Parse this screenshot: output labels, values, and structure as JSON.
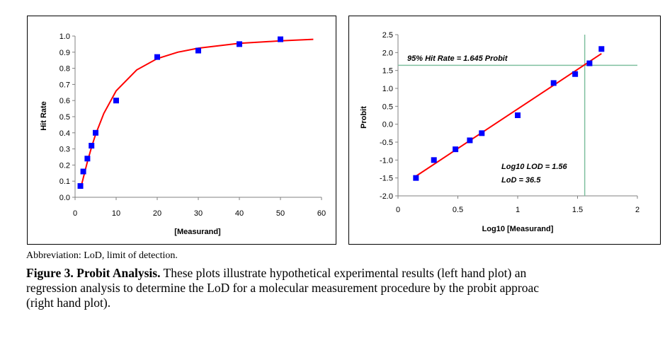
{
  "colors": {
    "marker": "#0000FF",
    "fit_line": "#FF0000",
    "ref_line": "#7FBF9F",
    "axis": "#808080"
  },
  "chart_data": [
    {
      "type": "scatter",
      "xlabel": "[Measurand]",
      "ylabel": "Hit Rate",
      "xlim": [
        0,
        60
      ],
      "ylim": [
        0,
        1.0
      ],
      "x_ticks": [
        "0",
        "10",
        "20",
        "30",
        "40",
        "50",
        "60"
      ],
      "y_ticks": [
        "0.0",
        "0.1",
        "0.2",
        "0.3",
        "0.4",
        "0.5",
        "0.6",
        "0.7",
        "0.8",
        "0.9",
        "1.0"
      ],
      "series": [
        {
          "values": [
            [
              1.3,
              0.07
            ],
            [
              2,
              0.16
            ],
            [
              3,
              0.24
            ],
            [
              4,
              0.32
            ],
            [
              5,
              0.4
            ],
            [
              10,
              0.6
            ],
            [
              20,
              0.87
            ],
            [
              30,
              0.91
            ],
            [
              40,
              0.95
            ],
            [
              50,
              0.98
            ]
          ]
        }
      ],
      "fit_curve": [
        [
          1.5,
          0.07
        ],
        [
          2,
          0.12
        ],
        [
          3,
          0.22
        ],
        [
          4,
          0.31
        ],
        [
          5,
          0.39
        ],
        [
          7,
          0.52
        ],
        [
          10,
          0.66
        ],
        [
          15,
          0.79
        ],
        [
          20,
          0.86
        ],
        [
          25,
          0.9
        ],
        [
          30,
          0.925
        ],
        [
          40,
          0.955
        ],
        [
          50,
          0.97
        ],
        [
          58,
          0.98
        ]
      ],
      "grid": false
    },
    {
      "type": "scatter",
      "xlabel": "Log10 [Measurand]",
      "ylabel": "Probit",
      "xlim": [
        0,
        2
      ],
      "ylim": [
        -2.0,
        2.5
      ],
      "x_ticks": [
        "0",
        "0.5",
        "1",
        "1.5",
        "2"
      ],
      "y_ticks": [
        "-2.0",
        "-1.5",
        "-1.0",
        "-0.5",
        "0.0",
        "0.5",
        "1.0",
        "1.5",
        "2.0",
        "2.5"
      ],
      "series": [
        {
          "values": [
            [
              0.15,
              -1.5
            ],
            [
              0.3,
              -1.0
            ],
            [
              0.48,
              -0.7
            ],
            [
              0.6,
              -0.45
            ],
            [
              0.7,
              -0.25
            ],
            [
              1.0,
              0.25
            ],
            [
              1.3,
              1.15
            ],
            [
              1.48,
              1.4
            ],
            [
              1.6,
              1.7
            ],
            [
              1.7,
              2.1
            ]
          ]
        }
      ],
      "fit_line": [
        [
          0.15,
          -1.45
        ],
        [
          1.7,
          1.97
        ]
      ],
      "hline": 1.645,
      "vline": 1.56,
      "annotations": [
        "95% Hit Rate = 1.645 Probit",
        "Log10 LOD = 1.56",
        "LoD = 36.5"
      ],
      "grid": false
    }
  ],
  "abbreviation": "Abbreviation: LoD, limit of detection.",
  "caption": {
    "label": "Figure 3. Probit Analysis.",
    "lines": [
      " These plots illustrate hypothetical experimental results (left hand plot) an",
      "regression analysis to determine the LoD for a molecular measurement procedure by the probit approac",
      "(right hand plot)."
    ]
  }
}
